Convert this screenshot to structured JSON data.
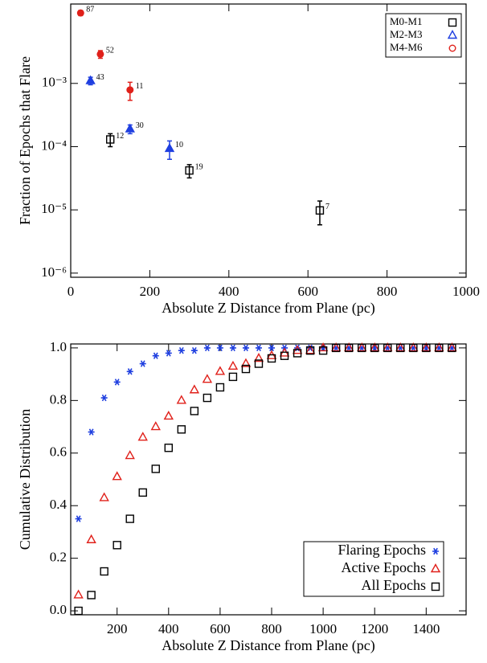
{
  "chart_data": [
    {
      "type": "scatter",
      "xlabel": "Absolute Z Distance from Plane (pc)",
      "ylabel": "Fraction of Epochs that Flare",
      "xlim": [
        0,
        1000
      ],
      "xticks": [
        0,
        200,
        400,
        600,
        800,
        1000
      ],
      "ylim": [
        8.6e-07,
        0.018
      ],
      "yscale": "log",
      "yticks": [
        {
          "value": 1e-06,
          "label": "10⁻⁶"
        },
        {
          "value": 1e-05,
          "label": "10⁻⁵"
        },
        {
          "value": 0.0001,
          "label": "10⁻⁴"
        },
        {
          "value": 0.001,
          "label": "10⁻³"
        }
      ],
      "legend": "upper right",
      "legend_text_colored": true,
      "series": [
        {
          "name": "M0-M1",
          "color": "#000000",
          "marker": "square",
          "filled": false,
          "x": [
            100,
            300,
            630
          ],
          "values": [
            0.00013,
            4.2e-05,
            9.8e-06
          ],
          "errors": [
            3e-05,
            1e-05,
            4e-06
          ],
          "counts": [
            "12",
            "19",
            "7"
          ]
        },
        {
          "name": "M2-M3",
          "color": "#1f3fe0",
          "marker": "triangle",
          "filled": true,
          "x": [
            50,
            150,
            250
          ],
          "values": [
            0.0011,
            0.00019,
            9.3e-05
          ],
          "errors": [
            0.00015,
            3e-05,
            3e-05
          ],
          "counts": [
            "43",
            "30",
            "10"
          ]
        },
        {
          "name": "M4-M6",
          "color": "#e0201a",
          "marker": "circle",
          "filled": true,
          "x": [
            25,
            75,
            150
          ],
          "values": [
            0.013,
            0.0029,
            0.00079
          ],
          "errors": [
            0.0012,
            0.0004,
            0.00025
          ],
          "counts": [
            "87",
            "52",
            "11"
          ]
        }
      ]
    },
    {
      "type": "scatter",
      "xlabel": "Absolute Z Distance from Plane (pc)",
      "ylabel": "Cumulative Distribution",
      "xlim": [
        20,
        1555
      ],
      "xticks": [
        200,
        400,
        600,
        800,
        1000,
        1200,
        1400
      ],
      "ylim": [
        -0.015,
        1.015
      ],
      "yticks": [
        {
          "value": 0,
          "label": "0.0"
        },
        0.2,
        0.4,
        0.6,
        0.8,
        {
          "value": 1,
          "label": "1.0"
        }
      ],
      "legend": "lower right",
      "legend_text_colored": false,
      "x": [
        50,
        100,
        150,
        200,
        250,
        300,
        350,
        400,
        450,
        500,
        550,
        600,
        650,
        700,
        750,
        800,
        850,
        900,
        950,
        1000,
        1050,
        1100,
        1150,
        1200,
        1250,
        1300,
        1350,
        1400,
        1450,
        1500
      ],
      "series": [
        {
          "name": "Flaring Epochs",
          "color": "#1f3fe0",
          "marker": "asterisk",
          "filled": false,
          "values": [
            0.35,
            0.68,
            0.81,
            0.87,
            0.91,
            0.94,
            0.97,
            0.98,
            0.99,
            0.99,
            1.0,
            1.0,
            1.0,
            1.0,
            1.0,
            1.0,
            1.0,
            1.0,
            1.0,
            1.0,
            1.0,
            1.0,
            1.0,
            1.0,
            1.0,
            1.0,
            1.0,
            1.0,
            1.0,
            1.0
          ]
        },
        {
          "name": "Active Epochs",
          "color": "#e0201a",
          "marker": "triangle",
          "filled": false,
          "values": [
            0.06,
            0.27,
            0.43,
            0.51,
            0.59,
            0.66,
            0.7,
            0.74,
            0.8,
            0.84,
            0.88,
            0.91,
            0.93,
            0.94,
            0.96,
            0.97,
            0.98,
            0.99,
            0.99,
            1.0,
            1.0,
            1.0,
            1.0,
            1.0,
            1.0,
            1.0,
            1.0,
            1.0,
            1.0,
            1.0
          ]
        },
        {
          "name": "All Epochs",
          "color": "#000000",
          "marker": "square",
          "filled": false,
          "values": [
            0.0,
            0.06,
            0.15,
            0.25,
            0.35,
            0.45,
            0.54,
            0.62,
            0.69,
            0.76,
            0.81,
            0.85,
            0.89,
            0.92,
            0.94,
            0.96,
            0.97,
            0.98,
            0.99,
            0.99,
            1.0,
            1.0,
            1.0,
            1.0,
            1.0,
            1.0,
            1.0,
            1.0,
            1.0,
            1.0
          ]
        }
      ]
    }
  ]
}
